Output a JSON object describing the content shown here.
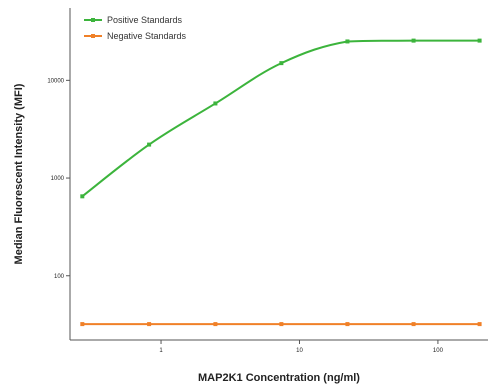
{
  "chart_data": {
    "type": "line",
    "title": "",
    "xlabel": "MAP2K1 Concentration (ng/ml)",
    "ylabel": "Median Fluorescent Intensity (MFI)",
    "xscale": "log",
    "yscale": "log",
    "xlim": [
      0.22,
      230
    ],
    "ylim": [
      22,
      55000
    ],
    "x_ticks": [
      1,
      10,
      100
    ],
    "x_tick_labels": [
      "1",
      "10",
      "100"
    ],
    "y_ticks": [
      100,
      1000,
      10000
    ],
    "y_tick_labels": [
      "100",
      "1000",
      "10000"
    ],
    "grid": false,
    "legend_position": "top-left",
    "series": [
      {
        "name": "Positive Standards",
        "color": "#3cb43c",
        "marker": "square",
        "x": [
          0.27,
          0.82,
          2.47,
          7.4,
          22.2,
          66.7,
          200
        ],
        "y": [
          650,
          2200,
          5800,
          15000,
          25000,
          25500,
          25500
        ]
      },
      {
        "name": "Negative Standards",
        "color": "#f08028",
        "marker": "square",
        "x": [
          0.27,
          0.82,
          2.47,
          7.4,
          22.2,
          66.7,
          200
        ],
        "y": [
          32,
          32,
          32,
          32,
          32,
          32,
          32
        ]
      }
    ]
  }
}
